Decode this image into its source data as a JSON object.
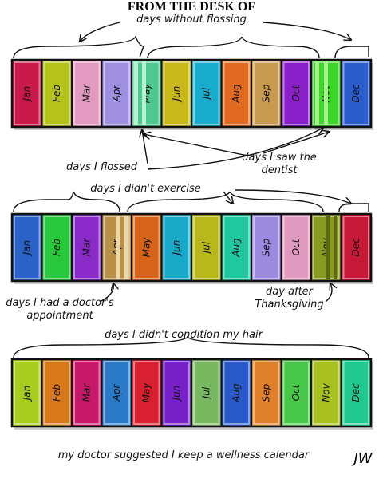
{
  "header": {
    "title": "FROM THE DESK OF"
  },
  "rows": [
    {
      "months": [
        {
          "label": "Jan",
          "color": "#c8194a"
        },
        {
          "label": "Feb",
          "color": "#b5c21a"
        },
        {
          "label": "Mar",
          "color": "#e29ac0"
        },
        {
          "label": "Apr",
          "color": "#9e8fe0"
        },
        {
          "label": "May",
          "color": "#4fc890"
        },
        {
          "label": "Jun",
          "color": "#c9b81a"
        },
        {
          "label": "Jul",
          "color": "#1aaccc"
        },
        {
          "label": "Aug",
          "color": "#e06a1f"
        },
        {
          "label": "Sep",
          "color": "#c89a50"
        },
        {
          "label": "Oct",
          "color": "#8a1ec8"
        },
        {
          "label": "Nov",
          "color": "#3cd62a"
        },
        {
          "label": "Dec",
          "color": "#2a5ccc"
        }
      ],
      "annotations": [
        "days without flossing",
        "days I flossed",
        "days I saw the dentist"
      ]
    },
    {
      "months": [
        {
          "label": "Jan",
          "color": "#2a62c8"
        },
        {
          "label": "Feb",
          "color": "#28c83c"
        },
        {
          "label": "Mar",
          "color": "#8a2ac8"
        },
        {
          "label": "Apr",
          "color": "#b89048"
        },
        {
          "label": "May",
          "color": "#d8641a"
        },
        {
          "label": "Jun",
          "color": "#18a8c8"
        },
        {
          "label": "Jul",
          "color": "#b8b81a"
        },
        {
          "label": "Aug",
          "color": "#20c8a0"
        },
        {
          "label": "Sep",
          "color": "#9c8ae0"
        },
        {
          "label": "Oct",
          "color": "#e09ac0"
        },
        {
          "label": "Nov",
          "color": "#8a9a20"
        },
        {
          "label": "Dec",
          "color": "#c81838"
        }
      ],
      "annotations": [
        "days I didn't exercise",
        "days I had a doctor's appointment",
        "day after Thanksgiving"
      ]
    },
    {
      "months": [
        {
          "label": "Jan",
          "color": "#a8cc20"
        },
        {
          "label": "Feb",
          "color": "#d8781a"
        },
        {
          "label": "Mar",
          "color": "#c8186a"
        },
        {
          "label": "Apr",
          "color": "#2a7ac8"
        },
        {
          "label": "May",
          "color": "#d82030"
        },
        {
          "label": "Jun",
          "color": "#7820c8"
        },
        {
          "label": "Jul",
          "color": "#78b860"
        },
        {
          "label": "Aug",
          "color": "#2a5ac8"
        },
        {
          "label": "Sep",
          "color": "#e0802a"
        },
        {
          "label": "Oct",
          "color": "#48c848"
        },
        {
          "label": "Nov",
          "color": "#a8c020"
        },
        {
          "label": "Dec",
          "color": "#20c890"
        }
      ],
      "annotations": [
        "days I didn't condition my hair"
      ]
    }
  ],
  "caption": "my doctor suggested I keep a wellness calendar",
  "signature": "JW"
}
